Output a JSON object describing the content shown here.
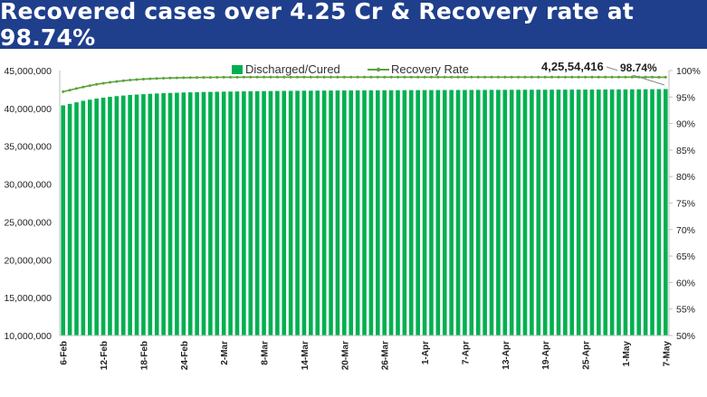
{
  "banner": {
    "title": "Recovered cases over 4.25 Cr & Recovery rate at 98.74%"
  },
  "colors": {
    "banner_bg": "#1f3f8c",
    "bar": "#00b050",
    "line": "#5ba33a",
    "axis_text": "#222222"
  },
  "chart_data": {
    "type": "bar",
    "title": "Recovered cases over 4.25 Cr & Recovery rate at 98.74%",
    "dates": [
      "6-Feb",
      "7-Feb",
      "8-Feb",
      "9-Feb",
      "10-Feb",
      "11-Feb",
      "12-Feb",
      "13-Feb",
      "14-Feb",
      "15-Feb",
      "16-Feb",
      "17-Feb",
      "18-Feb",
      "19-Feb",
      "20-Feb",
      "21-Feb",
      "22-Feb",
      "23-Feb",
      "24-Feb",
      "25-Feb",
      "26-Feb",
      "27-Feb",
      "28-Feb",
      "1-Mar",
      "2-Mar",
      "3-Mar",
      "4-Mar",
      "5-Mar",
      "6-Mar",
      "7-Mar",
      "8-Mar",
      "9-Mar",
      "10-Mar",
      "11-Mar",
      "12-Mar",
      "13-Mar",
      "14-Mar",
      "15-Mar",
      "16-Mar",
      "17-Mar",
      "18-Mar",
      "19-Mar",
      "20-Mar",
      "21-Mar",
      "22-Mar",
      "23-Mar",
      "24-Mar",
      "25-Mar",
      "26-Mar",
      "27-Mar",
      "28-Mar",
      "29-Mar",
      "30-Mar",
      "31-Mar",
      "1-Apr",
      "2-Apr",
      "3-Apr",
      "4-Apr",
      "5-Apr",
      "6-Apr",
      "7-Apr",
      "8-Apr",
      "9-Apr",
      "10-Apr",
      "11-Apr",
      "12-Apr",
      "13-Apr",
      "14-Apr",
      "15-Apr",
      "16-Apr",
      "17-Apr",
      "18-Apr",
      "19-Apr",
      "20-Apr",
      "21-Apr",
      "22-Apr",
      "23-Apr",
      "24-Apr",
      "25-Apr",
      "26-Apr",
      "27-Apr",
      "28-Apr",
      "29-Apr",
      "30-Apr",
      "1-May",
      "2-May",
      "3-May",
      "4-May",
      "5-May",
      "6-May",
      "7-May"
    ],
    "tick_labels": [
      "6-Feb",
      "12-Feb",
      "18-Feb",
      "24-Feb",
      "2-Mar",
      "8-Mar",
      "14-Mar",
      "20-Mar",
      "26-Mar",
      "1-Apr",
      "7-Apr",
      "13-Apr",
      "19-Apr",
      "25-Apr",
      "1-May",
      "7-May"
    ],
    "series": [
      {
        "name": "Discharged/Cured",
        "type": "bar",
        "axis": "left",
        "values": [
          40400000,
          40600000,
          40800000,
          41000000,
          41150000,
          41300000,
          41420000,
          41530000,
          41620000,
          41700000,
          41770000,
          41830000,
          41880000,
          41930000,
          41970000,
          42010000,
          42040000,
          42070000,
          42100000,
          42120000,
          42140000,
          42160000,
          42180000,
          42195000,
          42210000,
          42225000,
          42238000,
          42250000,
          42262000,
          42273000,
          42284000,
          42294000,
          42303000,
          42312000,
          42320000,
          42328000,
          42335000,
          42342000,
          42348000,
          42354000,
          42360000,
          42365000,
          42370000,
          42375000,
          42380000,
          42384000,
          42388000,
          42392000,
          42396000,
          42400000,
          42404000,
          42408000,
          42411000,
          42414000,
          42417000,
          42420000,
          42423000,
          42426000,
          42429000,
          42432000,
          42435000,
          42438000,
          42441000,
          42444000,
          42447000,
          42450000,
          42453000,
          42456000,
          42459000,
          42462000,
          42465000,
          42468000,
          42471000,
          42474000,
          42477000,
          42480000,
          42483000,
          42486000,
          42489000,
          42492000,
          42495000,
          42499000,
          42503000,
          42508000,
          42513000,
          42518000,
          42524000,
          42530000,
          42537000,
          42545000,
          42554416
        ]
      },
      {
        "name": "Recovery Rate",
        "type": "line",
        "axis": "right",
        "values": [
          96.0,
          96.3,
          96.6,
          96.9,
          97.15,
          97.4,
          97.6,
          97.78,
          97.94,
          98.08,
          98.2,
          98.3,
          98.38,
          98.45,
          98.5,
          98.55,
          98.59,
          98.62,
          98.65,
          98.67,
          98.69,
          98.7,
          98.71,
          98.72,
          98.73,
          98.74,
          98.74,
          98.75,
          98.75,
          98.75,
          98.75,
          98.75,
          98.75,
          98.75,
          98.75,
          98.75,
          98.75,
          98.75,
          98.75,
          98.75,
          98.75,
          98.75,
          98.75,
          98.75,
          98.75,
          98.75,
          98.75,
          98.75,
          98.75,
          98.75,
          98.75,
          98.75,
          98.75,
          98.75,
          98.75,
          98.75,
          98.75,
          98.75,
          98.75,
          98.75,
          98.75,
          98.75,
          98.75,
          98.75,
          98.75,
          98.75,
          98.75,
          98.75,
          98.75,
          98.75,
          98.75,
          98.75,
          98.75,
          98.75,
          98.75,
          98.75,
          98.75,
          98.75,
          98.75,
          98.75,
          98.75,
          98.75,
          98.75,
          98.75,
          98.75,
          98.75,
          98.75,
          98.75,
          98.75,
          98.74,
          98.74
        ]
      }
    ],
    "y_left": {
      "min": 10000000,
      "max": 45000000,
      "step": 5000000,
      "tick_labels": [
        "10,000,000",
        "15,000,000",
        "20,000,000",
        "25,000,000",
        "30,000,000",
        "35,000,000",
        "40,000,000",
        "45,000,000"
      ]
    },
    "y_right": {
      "min": 50,
      "max": 100,
      "step": 5,
      "tick_labels": [
        "50%",
        "55%",
        "60%",
        "65%",
        "70%",
        "75%",
        "80%",
        "85%",
        "90%",
        "95%",
        "100%"
      ]
    },
    "legend": {
      "position": "top",
      "items": [
        "Discharged/Cured",
        "Recovery Rate"
      ]
    },
    "annotations": [
      {
        "text": "4,25,54,416",
        "target": "last-bar"
      },
      {
        "text": "98.74%",
        "target": "last-point"
      }
    ],
    "grid": false
  }
}
